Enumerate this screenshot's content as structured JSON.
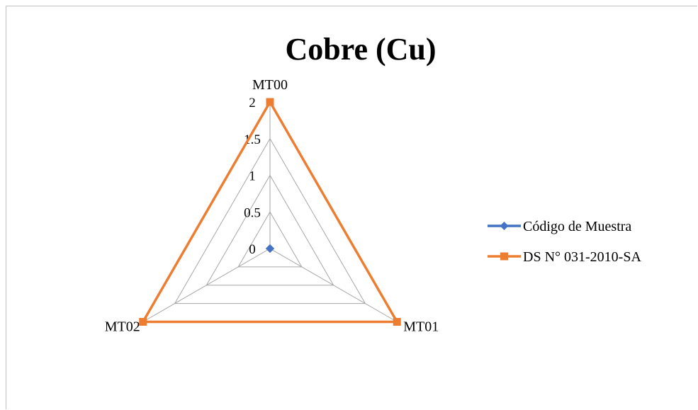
{
  "chart_data": {
    "type": "radar",
    "title": "Cobre (Cu)",
    "categories": [
      "MT00",
      "MT01",
      "MT02"
    ],
    "radial_ticks": [
      "0",
      "0.5",
      "1",
      "1.5",
      "2"
    ],
    "rlim": [
      0,
      2
    ],
    "grid": true,
    "legend_position": "right",
    "series": [
      {
        "name": "Código de Muestra",
        "values": [
          0,
          0,
          0
        ],
        "color": "#4472c4",
        "marker": "diamond"
      },
      {
        "name": "DS N° 031-2010-SA",
        "values": [
          2,
          2,
          2
        ],
        "color": "#ed7d31",
        "marker": "square"
      }
    ]
  }
}
